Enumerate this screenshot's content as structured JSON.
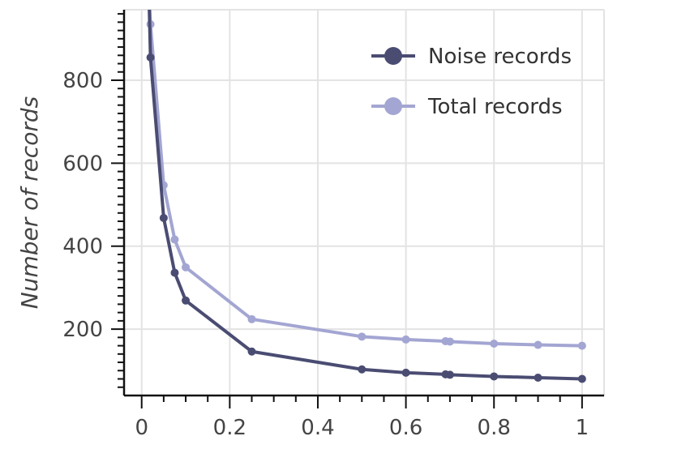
{
  "chart_data": {
    "type": "line",
    "title": "",
    "xlabel": "",
    "ylabel": "Number of records",
    "xlim": [
      -0.04,
      1.05
    ],
    "ylim": [
      40,
      970
    ],
    "x_ticks": [
      0,
      0.2,
      0.4,
      0.6,
      0.8,
      1
    ],
    "x_tick_labels": [
      "0",
      "0.2",
      "0.4",
      "0.6",
      "0.8",
      "1"
    ],
    "y_ticks": [
      200,
      400,
      600,
      800
    ],
    "y_tick_labels": [
      "200",
      "400",
      "600",
      "800"
    ],
    "grid": true,
    "legend_position": "top-right",
    "series": [
      {
        "name": "Noise records",
        "color": "#4a4c72",
        "points": [
          {
            "x": 0.02,
            "y": 855
          },
          {
            "x": 0.05,
            "y": 468
          },
          {
            "x": 0.075,
            "y": 336
          },
          {
            "x": 0.1,
            "y": 269
          },
          {
            "x": 0.25,
            "y": 146
          },
          {
            "x": 0.5,
            "y": 103
          },
          {
            "x": 0.6,
            "y": 95
          },
          {
            "x": 0.69,
            "y": 91
          },
          {
            "x": 0.7,
            "y": 90
          },
          {
            "x": 0.8,
            "y": 86
          },
          {
            "x": 0.9,
            "y": 83
          },
          {
            "x": 1.0,
            "y": 80
          }
        ]
      },
      {
        "name": "Total records",
        "color": "#a3a5d2",
        "points": [
          {
            "x": 0.02,
            "y": 935
          },
          {
            "x": 0.05,
            "y": 547
          },
          {
            "x": 0.075,
            "y": 416
          },
          {
            "x": 0.1,
            "y": 349
          },
          {
            "x": 0.25,
            "y": 224
          },
          {
            "x": 0.5,
            "y": 182
          },
          {
            "x": 0.6,
            "y": 175
          },
          {
            "x": 0.69,
            "y": 171
          },
          {
            "x": 0.7,
            "y": 170
          },
          {
            "x": 0.8,
            "y": 165
          },
          {
            "x": 0.9,
            "y": 162
          },
          {
            "x": 1.0,
            "y": 160
          }
        ]
      }
    ]
  }
}
